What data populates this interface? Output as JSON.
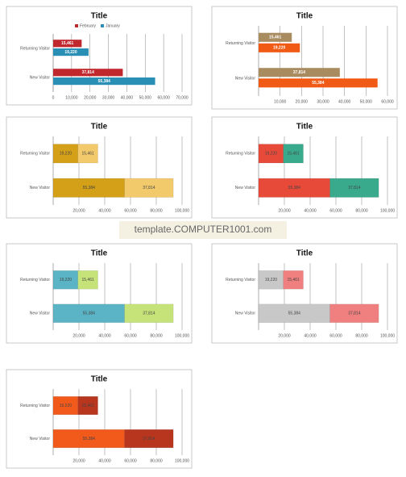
{
  "chart_data": [
    {
      "type": "bar",
      "title": "Title",
      "categories": [
        "Returning Visitor",
        "New Visitor"
      ],
      "series": [
        {
          "name": "February",
          "color": "#c0282d",
          "values": [
            15461,
            37814
          ],
          "value_labels": [
            "15,461",
            "37,814"
          ]
        },
        {
          "name": "January",
          "color": "#2a8fb5",
          "values": [
            19220,
            55384
          ],
          "value_labels": [
            "19,220",
            "55,384"
          ]
        }
      ],
      "xlim": [
        0,
        70000
      ],
      "xticks": [
        0,
        {
          "value": 10000,
          "label": "10,000"
        },
        {
          "value": 20000,
          "label": "20,000"
        },
        {
          "value": 30000,
          "label": "30,000"
        },
        {
          "value": 40000,
          "label": "40,000"
        },
        {
          "value": 50000,
          "label": "50,000"
        },
        {
          "value": 60000,
          "label": "60,000"
        },
        {
          "value": 70000,
          "label": "70,000"
        }
      ],
      "grid": true,
      "legend": "top"
    },
    {
      "type": "bar",
      "title": "Title",
      "categories": [
        "Returning Visitor",
        "New Visitor"
      ],
      "series": [
        {
          "color": "#a88b5e",
          "values": [
            15461,
            37814
          ],
          "value_labels": [
            "15,461",
            "37,814"
          ]
        },
        {
          "color": "#f05a14",
          "values": [
            19220,
            55384
          ],
          "value_labels": [
            "19,220",
            "55,384"
          ]
        }
      ],
      "xlim": [
        0,
        60000
      ],
      "xticks": [
        {
          "value": 10000,
          "label": "10,000"
        },
        {
          "value": 20000,
          "label": "20,000"
        },
        {
          "value": 30000,
          "label": "30,000"
        },
        {
          "value": 40000,
          "label": "40,000"
        },
        {
          "value": 50000,
          "label": "50,000"
        },
        {
          "value": 60000,
          "label": "60,000"
        }
      ],
      "grid": true
    },
    {
      "type": "stacked_bar",
      "title": "Title",
      "categories": [
        "Returning Visitor",
        "New Visitor"
      ],
      "series": [
        {
          "color": "#d4a017",
          "values": [
            19220,
            55384
          ],
          "value_labels": [
            "19,220",
            "55,384"
          ]
        },
        {
          "color": "#f2c96b",
          "values": [
            15461,
            37814
          ],
          "value_labels": [
            "15,461",
            "37,814"
          ]
        }
      ],
      "xlim": [
        0,
        100000
      ],
      "xticks": [
        {
          "value": 20000,
          "label": "20,000"
        },
        {
          "value": 40000,
          "label": "40,000"
        },
        {
          "value": 60000,
          "label": "60,000"
        },
        {
          "value": 80000,
          "label": "80,000"
        },
        {
          "value": 100000,
          "label": "100,000"
        }
      ],
      "grid": true
    },
    {
      "type": "stacked_bar",
      "title": "Title",
      "categories": [
        "Returning Visitor",
        "New Visitor"
      ],
      "series": [
        {
          "color": "#e84a3a",
          "values": [
            19220,
            55384
          ],
          "value_labels": [
            "19,220",
            "55,384"
          ]
        },
        {
          "color": "#3aaa8c",
          "values": [
            15461,
            37814
          ],
          "value_labels": [
            "15,461",
            "37,814"
          ]
        }
      ],
      "xlim": [
        0,
        100000
      ],
      "xticks": [
        {
          "value": 20000,
          "label": "20,000"
        },
        {
          "value": 40000,
          "label": "40,000"
        },
        {
          "value": 60000,
          "label": "60,000"
        },
        {
          "value": 80000,
          "label": "80,000"
        },
        {
          "value": 100000,
          "label": "100,000"
        }
      ],
      "grid": true
    },
    {
      "type": "stacked_bar",
      "title": "Title",
      "categories": [
        "Returning Visitor",
        "New Visitor"
      ],
      "series": [
        {
          "color": "#5ab4c5",
          "values": [
            19220,
            55384
          ],
          "value_labels": [
            "19,220",
            "55,384"
          ]
        },
        {
          "color": "#c6e37a",
          "values": [
            15461,
            37814
          ],
          "value_labels": [
            "15,461",
            "37,814"
          ]
        }
      ],
      "xlim": [
        0,
        100000
      ],
      "xticks": [
        {
          "value": 20000,
          "label": "20,000"
        },
        {
          "value": 40000,
          "label": "40,000"
        },
        {
          "value": 60000,
          "label": "60,000"
        },
        {
          "value": 80000,
          "label": "80,000"
        },
        {
          "value": 100000,
          "label": "100,000"
        }
      ],
      "grid": true
    },
    {
      "type": "stacked_bar",
      "title": "Title",
      "categories": [
        "Returning Visitor",
        "New Visitor"
      ],
      "series": [
        {
          "color": "#c8c8c8",
          "values": [
            19220,
            55384
          ],
          "value_labels": [
            "19,220",
            "55,384"
          ]
        },
        {
          "color": "#f08080",
          "values": [
            15461,
            37814
          ],
          "value_labels": [
            "15,461",
            "37,814"
          ]
        }
      ],
      "xlim": [
        0,
        100000
      ],
      "xticks": [
        {
          "value": 20000,
          "label": "20,000"
        },
        {
          "value": 40000,
          "label": "40,000"
        },
        {
          "value": 60000,
          "label": "60,000"
        },
        {
          "value": 80000,
          "label": "80,000"
        },
        {
          "value": 100000,
          "label": "100,000"
        }
      ],
      "grid": true
    },
    {
      "type": "stacked_bar",
      "title": "Title",
      "categories": [
        "Returning Visitor",
        "New Visitor"
      ],
      "series": [
        {
          "color": "#f25a1c",
          "values": [
            19220,
            55384
          ],
          "value_labels": [
            "19,220",
            "55,384"
          ]
        },
        {
          "color": "#b8351e",
          "values": [
            15461,
            37814
          ],
          "value_labels": [
            "15,461",
            "37,814"
          ]
        }
      ],
      "xlim": [
        0,
        100000
      ],
      "xticks": [
        {
          "value": 20000,
          "label": "20,000"
        },
        {
          "value": 40000,
          "label": "40,000"
        },
        {
          "value": 60000,
          "label": "60,000"
        },
        {
          "value": 80000,
          "label": "80,000"
        },
        {
          "value": 100000,
          "label": "100,000"
        }
      ],
      "grid": true
    }
  ],
  "watermark": "template.COMPUTER1001.com"
}
